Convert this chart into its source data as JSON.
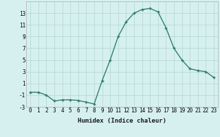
{
  "x": [
    0,
    1,
    2,
    3,
    4,
    5,
    6,
    7,
    8,
    9,
    10,
    11,
    12,
    13,
    14,
    15,
    16,
    17,
    18,
    19,
    20,
    21,
    22,
    23
  ],
  "y": [
    -0.5,
    -0.5,
    -1.0,
    -2.0,
    -1.8,
    -1.8,
    -1.9,
    -2.2,
    -2.5,
    1.5,
    5.0,
    9.0,
    11.5,
    13.0,
    13.6,
    13.8,
    13.2,
    10.5,
    7.0,
    5.0,
    3.5,
    3.2,
    3.0,
    2.0
  ],
  "xlabel": "Humidex (Indice chaleur)",
  "line_color": "#2e7d6e",
  "bg_color": "#d6f0f0",
  "grid_color": "#b8d8d8",
  "ylim": [
    -3,
    15
  ],
  "xlim": [
    -0.5,
    23.5
  ],
  "yticks": [
    -3,
    -1,
    1,
    3,
    5,
    7,
    9,
    11,
    13
  ],
  "xticks": [
    0,
    1,
    2,
    3,
    4,
    5,
    6,
    7,
    8,
    9,
    10,
    11,
    12,
    13,
    14,
    15,
    16,
    17,
    18,
    19,
    20,
    21,
    22,
    23
  ],
  "marker": "+",
  "markersize": 3,
  "linewidth": 1.0,
  "tick_fontsize": 5.5,
  "xlabel_fontsize": 6.5
}
